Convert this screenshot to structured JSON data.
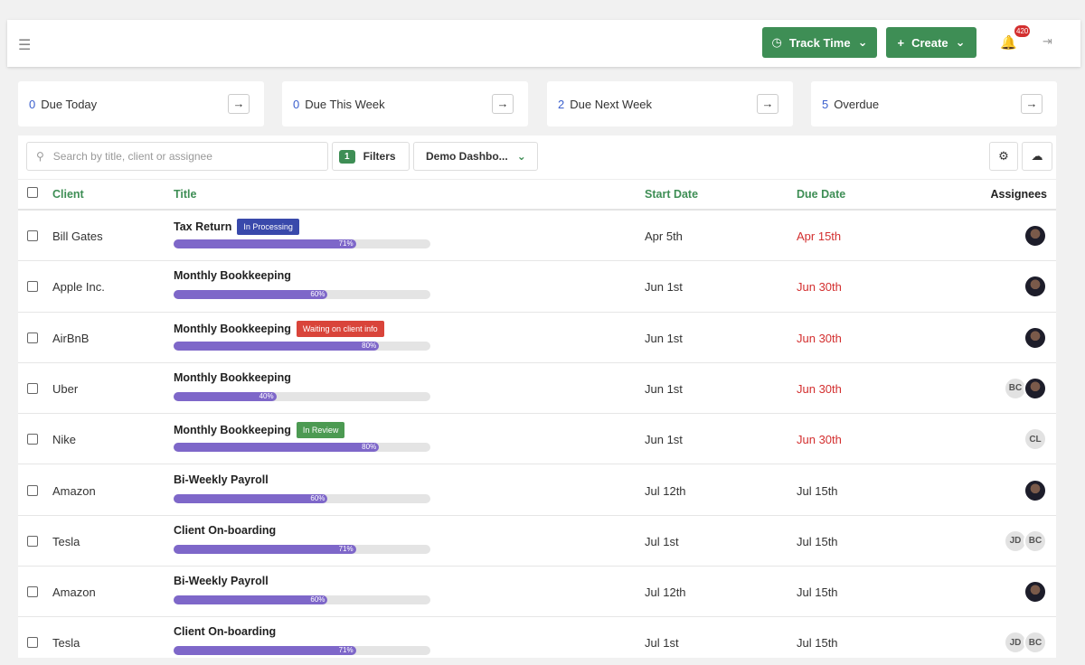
{
  "topbar": {
    "track_time": "Track Time",
    "create": "Create",
    "notifications": "420"
  },
  "summary": [
    {
      "count": 0,
      "label": "Due Today"
    },
    {
      "count": 0,
      "label": "Due This Week"
    },
    {
      "count": 2,
      "label": "Due Next Week"
    },
    {
      "count": 5,
      "label": "Overdue"
    }
  ],
  "toolbar": {
    "search_placeholder": "Search by title, client or assignee",
    "filters_count": 1,
    "filters": "Filters",
    "view": "Demo Dashbo..."
  },
  "table": {
    "columns": [
      "Client",
      "Title",
      "Start Date",
      "Due Date",
      "Assignees"
    ],
    "rows": [
      {
        "client": "Bill Gates",
        "title": "Tax Return",
        "tag": {
          "text": "In Processing",
          "color": "#3949ab"
        },
        "progress": {
          "value": 71,
          "label": "71%"
        },
        "start": "Apr 5th",
        "due": "Apr 15th",
        "overdue": true,
        "assignees": [
          null
        ]
      },
      {
        "client": "Apple Inc.",
        "title": "Monthly Bookkeeping",
        "tag": null,
        "progress": {
          "value": 60,
          "label": "60%"
        },
        "start": "Jun 1st",
        "due": "Jun 30th",
        "overdue": true,
        "assignees": [
          null
        ]
      },
      {
        "client": "AirBnB",
        "title": "Monthly Bookkeeping",
        "tag": {
          "text": "Waiting on client info",
          "color": "#d9443a"
        },
        "progress": {
          "value": 80,
          "label": "80%"
        },
        "start": "Jun 1st",
        "due": "Jun 30th",
        "overdue": true,
        "assignees": [
          null
        ]
      },
      {
        "client": "Uber",
        "title": "Monthly Bookkeeping",
        "tag": null,
        "progress": {
          "value": 40,
          "label": "40%"
        },
        "start": "Jun 1st",
        "due": "Jun 30th",
        "overdue": true,
        "assignees": [
          "BC",
          null
        ]
      },
      {
        "client": "Nike",
        "title": "Monthly Bookkeeping",
        "tag": {
          "text": "In Review",
          "color": "#4c9a52"
        },
        "progress": {
          "value": 80,
          "label": "80%"
        },
        "start": "Jun 1st",
        "due": "Jun 30th",
        "overdue": true,
        "assignees": [
          "CL"
        ]
      },
      {
        "client": "Amazon",
        "title": "Bi-Weekly Payroll",
        "tag": null,
        "progress": {
          "value": 60,
          "label": "60%"
        },
        "start": "Jul 12th",
        "due": "Jul 15th",
        "overdue": false,
        "assignees": [
          null
        ]
      },
      {
        "client": "Tesla",
        "title": "Client On-boarding",
        "tag": null,
        "progress": {
          "value": 71,
          "label": "71%"
        },
        "start": "Jul 1st",
        "due": "Jul 15th",
        "overdue": false,
        "assignees": [
          "JD",
          "BC"
        ]
      },
      {
        "client": "Amazon",
        "title": "Bi-Weekly Payroll",
        "tag": null,
        "progress": {
          "value": 60,
          "label": "60%"
        },
        "start": "Jul 12th",
        "due": "Jul 15th",
        "overdue": false,
        "assignees": [
          null
        ]
      },
      {
        "client": "Tesla",
        "title": "Client On-boarding",
        "tag": null,
        "progress": {
          "value": 71,
          "label": "71%"
        },
        "start": "Jul 1st",
        "due": "Jul 15th",
        "overdue": false,
        "assignees": [
          "JD",
          "BC"
        ]
      }
    ]
  }
}
